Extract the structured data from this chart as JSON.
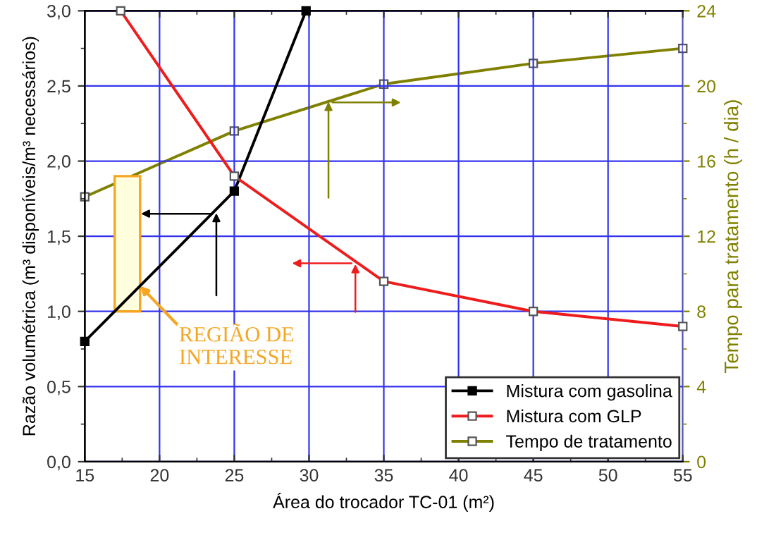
{
  "chart_data": {
    "type": "line",
    "xlabel": "Área do trocador TC-01 (m²)",
    "ylabel": "Razão volumétrica (m³ disponíveis/m³ necessários)",
    "y2label": "Tempo para tratamento (h / dia)",
    "xlim": [
      15,
      55
    ],
    "xticks": [
      15,
      20,
      25,
      30,
      35,
      40,
      45,
      50,
      55
    ],
    "ylim": [
      0,
      3
    ],
    "yticks": [
      {
        "value": 0,
        "label": "0,0"
      },
      {
        "value": 0.5,
        "label": "0,5"
      },
      {
        "value": 1,
        "label": "1,0"
      },
      {
        "value": 1.5,
        "label": "1,5"
      },
      {
        "value": 2,
        "label": "2,0"
      },
      {
        "value": 2.5,
        "label": "2,5"
      },
      {
        "value": 3,
        "label": "3,0"
      }
    ],
    "y2lim": [
      0,
      24
    ],
    "y2ticks": [
      0,
      4,
      8,
      12,
      16,
      20,
      24
    ],
    "grid": true,
    "legend": "bottom right",
    "series": [
      {
        "name": "Mistura com gasolina",
        "color": "#000000",
        "marker": "square",
        "x": [
          15,
          25,
          29.8
        ],
        "values": [
          0.8,
          1.8,
          3.0
        ]
      },
      {
        "name": "Mistura com GLP",
        "color": "#ee1c1c",
        "marker": "square",
        "x": [
          17.4,
          25,
          35,
          45,
          55
        ],
        "values": [
          3.0,
          1.9,
          1.2,
          1.0,
          0.9
        ]
      },
      {
        "name": "Tempo de tratamento",
        "color": "#808000",
        "marker": "square",
        "axis": "y2",
        "x": [
          15,
          25,
          35,
          45,
          55
        ],
        "values": [
          14.1,
          17.6,
          20.1,
          21.2,
          22.0
        ]
      }
    ],
    "annotations": [
      {
        "text": "REGIÃO DE\nINTERESSE",
        "x": 18.7,
        "y": 1.17
      }
    ]
  }
}
